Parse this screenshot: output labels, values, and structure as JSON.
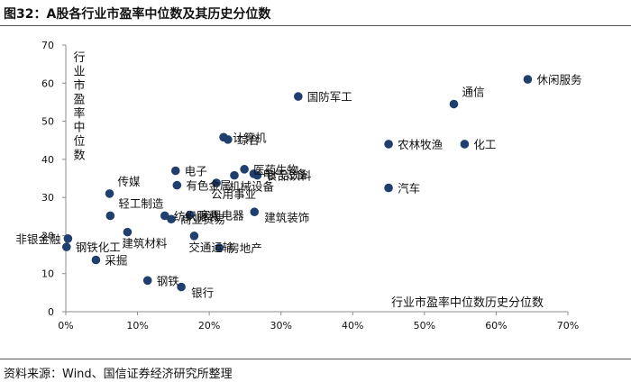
{
  "figure": {
    "title": "图32：A股各行业市盈率中位数及其历史分位数",
    "source": "资料来源：Wind、国信证券经济研究所整理"
  },
  "colors": {
    "marker": "#1f3f6e",
    "axis": "#8c8c8c",
    "text": "#111111"
  },
  "chart_data": {
    "type": "scatter",
    "title": "A股各行业市盈率中位数及其历史分位数",
    "xlabel": "行业市盈率中位数历史分位数",
    "ylabel": "行业市盈率中位数",
    "xlim": [
      0,
      70
    ],
    "ylim": [
      0,
      70
    ],
    "x_ticks": [
      0,
      10,
      20,
      30,
      40,
      50,
      60,
      70
    ],
    "x_tick_labels": [
      "0%",
      "10%",
      "20%",
      "30%",
      "40%",
      "50%",
      "60%",
      "70%"
    ],
    "y_ticks": [
      0,
      10,
      20,
      30,
      40,
      50,
      60,
      70
    ],
    "y_tick_labels": [
      "0",
      "10",
      "20",
      "30",
      "40",
      "50",
      "60",
      "70"
    ],
    "grid": false,
    "points": [
      {
        "label": "休闲服务",
        "x": 64.4,
        "y": 61.0,
        "anchor": "right"
      },
      {
        "label": "通信",
        "x": 54.1,
        "y": 54.5,
        "anchor": "upper-right"
      },
      {
        "label": "国防军工",
        "x": 32.4,
        "y": 56.5,
        "anchor": "right"
      },
      {
        "label": "农林牧渔",
        "x": 45.0,
        "y": 44.0,
        "anchor": "right"
      },
      {
        "label": "化工",
        "x": 55.6,
        "y": 44.0,
        "anchor": "right"
      },
      {
        "label": "汽车",
        "x": 45.0,
        "y": 32.5,
        "anchor": "right"
      },
      {
        "label": "计算机",
        "x": 22.0,
        "y": 45.8,
        "anchor": "right"
      },
      {
        "label": "综合",
        "x": 22.6,
        "y": 45.2,
        "anchor": "right"
      },
      {
        "label": "电子",
        "x": 15.3,
        "y": 37.0,
        "anchor": "right"
      },
      {
        "label": "有色金属",
        "x": 15.5,
        "y": 33.2,
        "anchor": "right"
      },
      {
        "label": "医药生物",
        "x": 24.9,
        "y": 37.4,
        "anchor": "right"
      },
      {
        "label": "电气设备",
        "x": 26.2,
        "y": 36.2,
        "anchor": "right"
      },
      {
        "label": "食品饮料",
        "x": 26.7,
        "y": 35.8,
        "anchor": "right"
      },
      {
        "label": "机械设备",
        "x": 23.5,
        "y": 35.8,
        "anchor": "below"
      },
      {
        "label": "公用事业",
        "x": 21.0,
        "y": 33.8,
        "anchor": "below"
      },
      {
        "label": "传媒",
        "x": 6.1,
        "y": 31.0,
        "anchor": "upper-right"
      },
      {
        "label": "轻工制造",
        "x": 6.2,
        "y": 25.2,
        "anchor": "upper-right"
      },
      {
        "label": "纺织服装",
        "x": 13.8,
        "y": 25.2,
        "anchor": "right"
      },
      {
        "label": "家用电器",
        "x": 17.3,
        "y": 25.4,
        "anchor": "right"
      },
      {
        "label": "商业贸易",
        "x": 14.7,
        "y": 24.3,
        "anchor": "right"
      },
      {
        "label": "建筑装饰",
        "x": 26.3,
        "y": 26.2,
        "anchor": "below-right"
      },
      {
        "label": "非银金融",
        "x": 0.3,
        "y": 19.2,
        "anchor": "left"
      },
      {
        "label": "钢铁化工",
        "x": 0.1,
        "y": 17.0,
        "anchor": "right"
      },
      {
        "label": "建筑材料",
        "x": 8.6,
        "y": 20.9,
        "anchor": "below"
      },
      {
        "label": "交通运输",
        "x": 17.9,
        "y": 19.9,
        "anchor": "below"
      },
      {
        "label": "房地产",
        "x": 21.4,
        "y": 16.8,
        "anchor": "right"
      },
      {
        "label": "采掘",
        "x": 4.2,
        "y": 13.6,
        "anchor": "right"
      },
      {
        "label": "钢铁",
        "x": 11.4,
        "y": 8.2,
        "anchor": "right"
      },
      {
        "label": "银行",
        "x": 16.1,
        "y": 6.5,
        "anchor": "below-right"
      }
    ]
  }
}
